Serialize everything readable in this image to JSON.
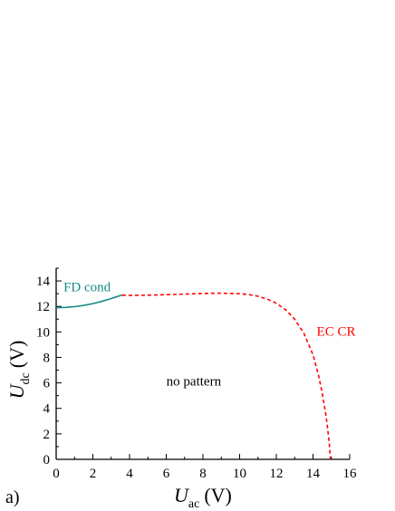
{
  "chart_data": {
    "type": "line",
    "panel_label": "a)",
    "xlabel": {
      "symbol": "U",
      "subscript": "ac",
      "unit": "(V)"
    },
    "ylabel": {
      "symbol": "U",
      "subscript": "dc",
      "unit": "(V)"
    },
    "xlim": [
      0,
      16
    ],
    "ylim": [
      0,
      15
    ],
    "xticks": [
      0,
      2,
      4,
      6,
      8,
      10,
      12,
      14,
      16
    ],
    "yticks": [
      0,
      2,
      4,
      6,
      8,
      10,
      12,
      14
    ],
    "grid": false,
    "series": [
      {
        "name": "FD cond",
        "style": "solid",
        "color": "#1a8a84",
        "x": [
          0,
          0.5,
          1.0,
          1.5,
          2.0,
          2.5,
          3.0,
          3.6
        ],
        "y": [
          11.9,
          11.92,
          11.98,
          12.08,
          12.22,
          12.4,
          12.62,
          12.9
        ]
      },
      {
        "name": "EC CR",
        "style": "dashed",
        "color": "#ff0000",
        "x": [
          3.6,
          4,
          5,
          6,
          7,
          8,
          9,
          10,
          10.5,
          11,
          11.5,
          12,
          12.5,
          13,
          13.5,
          14,
          14.3,
          14.5,
          14.7,
          14.8,
          14.9,
          14.95
        ],
        "y": [
          12.88,
          12.87,
          12.88,
          12.92,
          12.97,
          13.02,
          13.04,
          13.0,
          12.93,
          12.8,
          12.58,
          12.25,
          11.75,
          11.0,
          9.9,
          8.2,
          6.6,
          5.2,
          3.5,
          2.4,
          1.0,
          0
        ]
      }
    ],
    "annotations": [
      {
        "text": "FD cond",
        "x": 0.4,
        "y": 13.2,
        "color": "#1a8a84"
      },
      {
        "text": "EC CR",
        "x": 14.2,
        "y": 9.7,
        "color": "#ff0000"
      },
      {
        "text": "no pattern",
        "x": 7.5,
        "y": 5.8,
        "color": "#000000"
      }
    ]
  }
}
